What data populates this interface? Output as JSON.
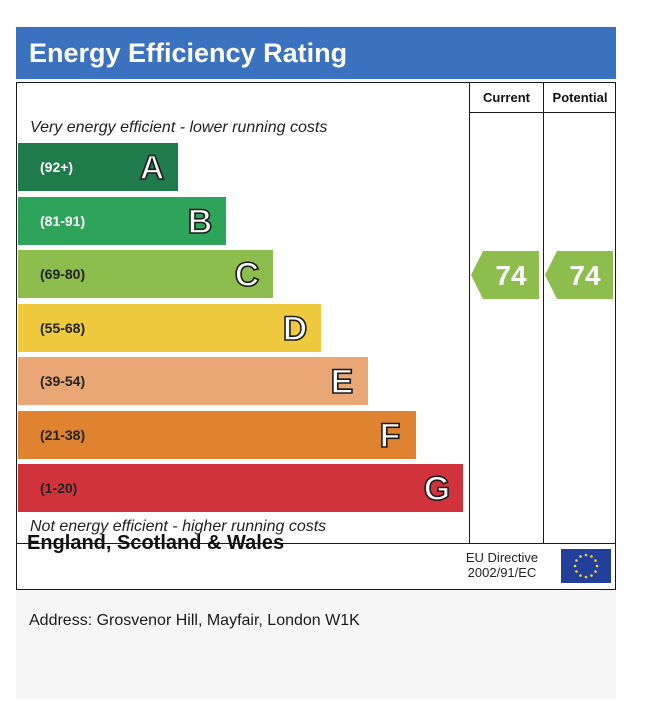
{
  "header": {
    "title": "Energy Efficiency Rating"
  },
  "columns": {
    "current": "Current",
    "potential": "Potential"
  },
  "notes": {
    "top": "Very energy efficient - lower running costs",
    "bottom": "Not energy efficient - higher running costs"
  },
  "chart_data": {
    "type": "bar",
    "title": "Energy Efficiency Rating",
    "categories": [
      "A",
      "B",
      "C",
      "D",
      "E",
      "F",
      "G"
    ],
    "ranges": [
      "(92+)",
      "(81-91)",
      "(69-80)",
      "(55-68)",
      "(39-54)",
      "(21-38)",
      "(1-20)"
    ],
    "colors": [
      "#1f7a4c",
      "#2ea35a",
      "#8cbd4d",
      "#efca3f",
      "#e8a774",
      "#df8331",
      "#d1333d"
    ],
    "range_text_colors": [
      "#ffffff",
      "#ffffff",
      "#222222",
      "#222222",
      "#222222",
      "#222222",
      "#222222"
    ],
    "current": {
      "value": 74,
      "band": "C"
    },
    "potential": {
      "value": 74,
      "band": "C"
    }
  },
  "footer": {
    "region": "England, Scotland & Wales",
    "directive_line1": "EU Directive",
    "directive_line2": "2002/91/EC",
    "flag_icon": "eu-flag-icon",
    "flag_color": "#22409a",
    "star_color": "#f4d23a"
  },
  "address": "Address: Grosvenor Hill, Mayfair, London W1K"
}
